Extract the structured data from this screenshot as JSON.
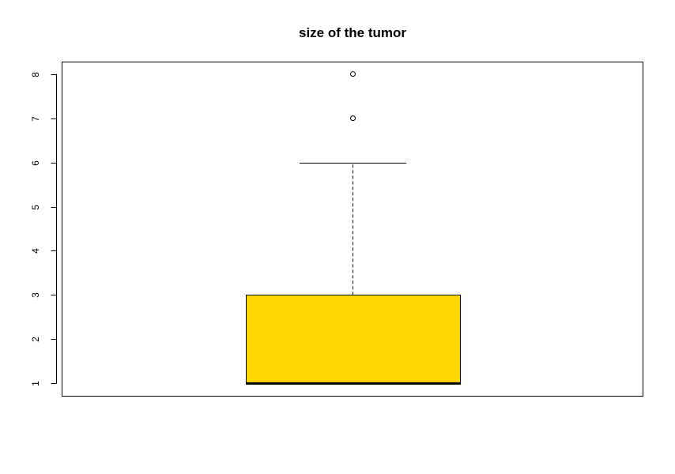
{
  "chart_data": {
    "type": "boxplot",
    "title": "size of the tumor",
    "xlabel": "",
    "ylabel": "",
    "ylim": [
      0.72,
      8.28
    ],
    "yticks": [
      1,
      2,
      3,
      4,
      5,
      6,
      7,
      8
    ],
    "ytick_labels": [
      "1",
      "2",
      "3",
      "4",
      "5",
      "6",
      "7",
      "8"
    ],
    "grid": false,
    "box": {
      "whisker_low": 1,
      "q1": 1,
      "median": 1,
      "q3": 3,
      "whisker_high": 6,
      "outliers": [
        7,
        8
      ],
      "fill": "#FFD700"
    }
  }
}
